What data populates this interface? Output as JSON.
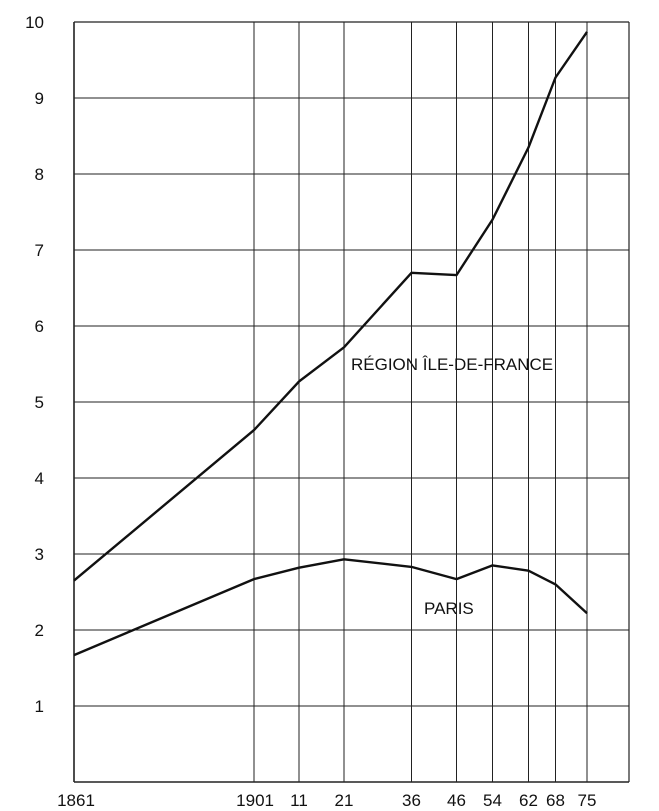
{
  "chart_data": {
    "type": "line",
    "x_tick_labels": [
      {
        "x": 1861,
        "label": "1861"
      },
      {
        "x": 1901,
        "label": "1901"
      },
      {
        "x": 1911,
        "label": "11"
      },
      {
        "x": 1921,
        "label": "21"
      },
      {
        "x": 1936,
        "label": "36"
      },
      {
        "x": 1946,
        "label": "46"
      },
      {
        "x": 1954,
        "label": "54"
      },
      {
        "x": 1962,
        "label": "62"
      },
      {
        "x": 1968,
        "label": "68"
      },
      {
        "x": 1975,
        "label": "75"
      }
    ],
    "y_ticks": [
      1,
      2,
      3,
      4,
      5,
      6,
      7,
      8,
      9,
      10
    ],
    "ylim": [
      0,
      10
    ],
    "xlim": [
      1861,
      1978
    ],
    "grid": true,
    "series": [
      {
        "name": "RÉGION ÎLE-DE-FRANCE",
        "x": [
          1861,
          1901,
          1911,
          1921,
          1936,
          1946,
          1954,
          1962,
          1968,
          1975
        ],
        "values": [
          2.65,
          4.63,
          5.27,
          5.72,
          6.7,
          6.67,
          7.4,
          8.35,
          9.27,
          9.87
        ]
      },
      {
        "name": "PARIS",
        "x": [
          1861,
          1901,
          1911,
          1921,
          1936,
          1946,
          1954,
          1962,
          1968,
          1975
        ],
        "values": [
          1.67,
          2.67,
          2.82,
          2.93,
          2.83,
          2.67,
          2.85,
          2.78,
          2.6,
          2.22
        ]
      }
    ],
    "colors": {
      "line": "#111111",
      "grid": "#222222",
      "background": "#ffffff"
    }
  }
}
